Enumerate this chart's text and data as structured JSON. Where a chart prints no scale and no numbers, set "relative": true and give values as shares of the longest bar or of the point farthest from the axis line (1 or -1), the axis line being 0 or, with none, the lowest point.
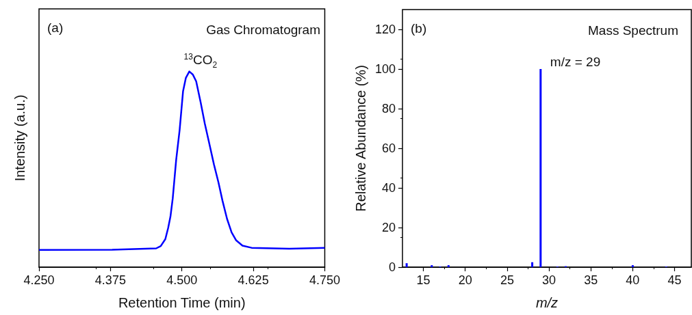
{
  "chart_data": [
    {
      "type": "line",
      "title": "Gas Chromatogram",
      "xlabel": "Retention Time (min)",
      "ylabel": "Intensity (a.u.)",
      "relative": true,
      "x": [
        4.25,
        4.378,
        4.455,
        4.463,
        4.471,
        4.476,
        4.48,
        4.484,
        4.49,
        4.496,
        4.502,
        4.507,
        4.513,
        4.519,
        4.525,
        4.533,
        4.54,
        4.548,
        4.556,
        4.564,
        4.571,
        4.579,
        4.587,
        4.595,
        4.606,
        4.622,
        4.688,
        4.75
      ],
      "series": [
        {
          "color": "#0000ff",
          "values": [
            0.088,
            0.089,
            0.096,
            0.108,
            0.143,
            0.201,
            0.259,
            0.352,
            0.549,
            0.7,
            0.898,
            0.968,
            1.0,
            0.985,
            0.95,
            0.84,
            0.735,
            0.631,
            0.526,
            0.433,
            0.34,
            0.247,
            0.178,
            0.137,
            0.11,
            0.099,
            0.094,
            0.099
          ]
        }
      ],
      "xlim": [
        4.25,
        4.75
      ],
      "xticks": [
        {
          "value": 4.25,
          "label": "4.250"
        },
        4.375,
        {
          "value": 4.5,
          "label": "4.500"
        },
        4.625,
        {
          "value": 4.75,
          "label": "4.750"
        }
      ],
      "annotations": [
        "(a)",
        {
          "text": "$^{13}$CO$_{2}$",
          "x": 4.513,
          "y": 1.0
        }
      ],
      "grid": false,
      "marker": "none",
      "line_style": "solid"
    },
    {
      "type": "bar",
      "title": "Mass Spectrum",
      "xlabel": "m/z",
      "ylabel": "Relative Abundance (%)",
      "x": [
        13,
        16,
        17,
        18,
        28,
        29,
        31,
        32,
        40,
        44
      ],
      "series": [
        {
          "color": "#0000ff",
          "values": [
            2,
            1,
            0.3,
            1,
            2.5,
            100,
            0.3,
            0.5,
            1,
            0.3
          ]
        }
      ],
      "xlim": [
        12.5,
        47
      ],
      "xticks": [
        15,
        20,
        25,
        30,
        35,
        40,
        45
      ],
      "ylim": [
        0,
        130
      ],
      "yticks": [
        0,
        20,
        40,
        60,
        80,
        100,
        120
      ],
      "annotations": [
        "(b)",
        {
          "text": "m/z = 29",
          "x": 29,
          "y": 100
        }
      ],
      "grid": false
    }
  ]
}
